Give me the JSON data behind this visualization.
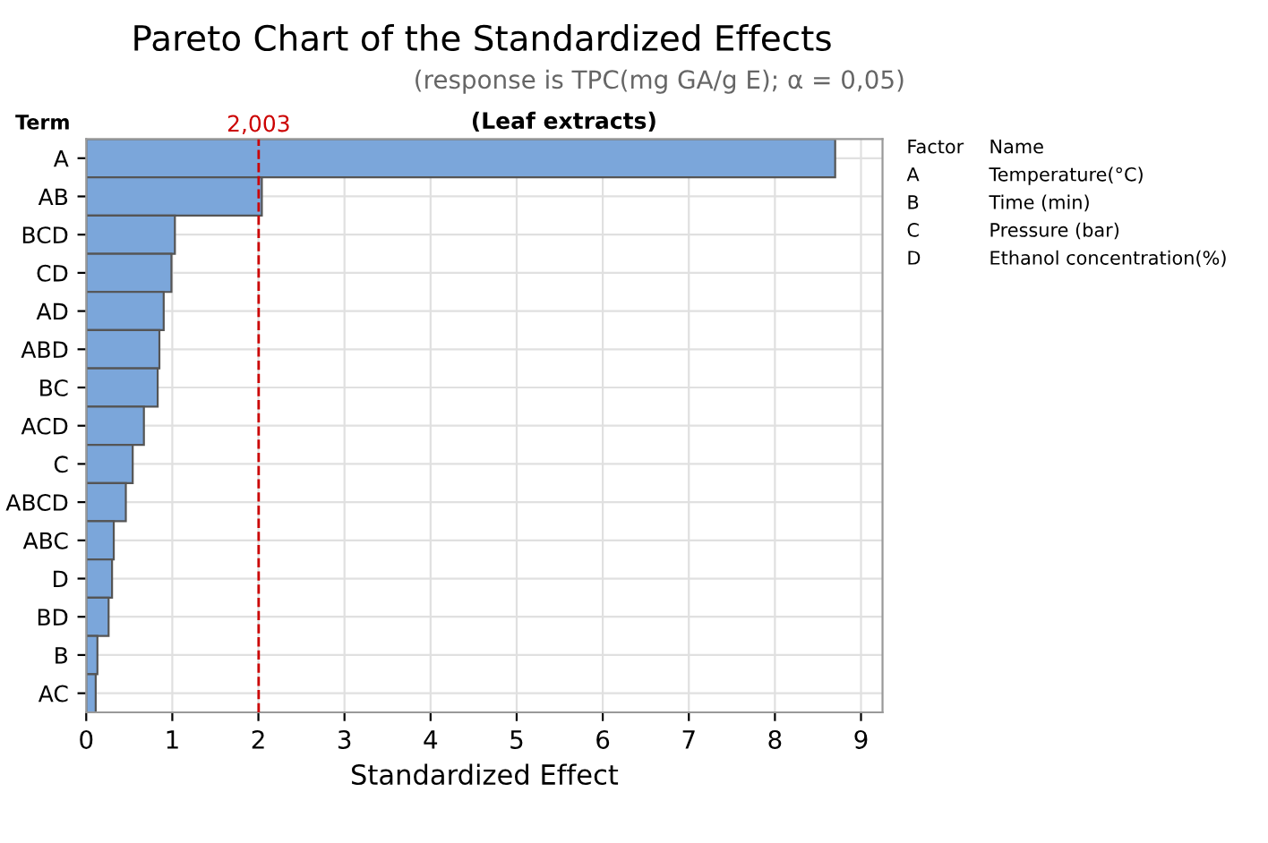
{
  "chart_data": {
    "type": "bar",
    "orientation": "horizontal",
    "title": "Pareto Chart of the Standardized Effects",
    "subtitle": "(response is TPC(mg GA/g E); α = 0,05)",
    "xlabel": "Standardized Effect",
    "ylabel": "Term",
    "categories": [
      "A",
      "AB",
      "BCD",
      "CD",
      "AD",
      "ABD",
      "BC",
      "ACD",
      "C",
      "ABCD",
      "ABC",
      "D",
      "BD",
      "B",
      "AC"
    ],
    "values": [
      8.7,
      2.04,
      1.03,
      0.99,
      0.9,
      0.85,
      0.83,
      0.67,
      0.54,
      0.46,
      0.32,
      0.3,
      0.26,
      0.13,
      0.11
    ],
    "color": "#7ba6da",
    "xlim": [
      0,
      9.25
    ],
    "xticks": [
      0,
      1,
      2,
      3,
      4,
      5,
      6,
      7,
      8,
      9
    ],
    "grid": true,
    "ref_lines": [
      {
        "axis": "x",
        "value": 2.003,
        "label": "2,003",
        "color": "#cc0000",
        "line_style": "dashed"
      }
    ],
    "annotations": [
      "(Leaf extracts)",
      "Factor\tName",
      "A\tTemperature(°C)",
      "B\tTime (min)",
      "C\tPressure (bar)",
      "D\tEthanol concentration(%)"
    ]
  }
}
